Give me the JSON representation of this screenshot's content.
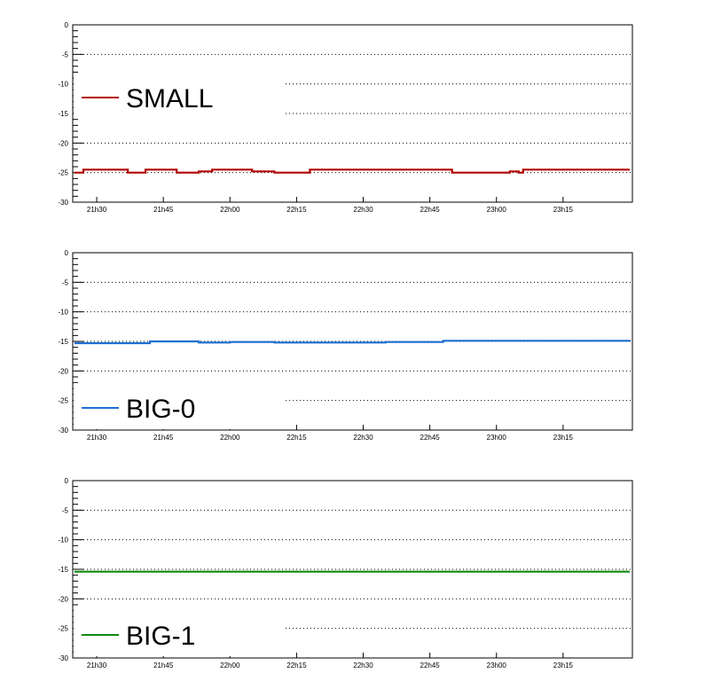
{
  "chart_data": [
    {
      "type": "line",
      "title": "",
      "xlabel": "",
      "ylabel": "",
      "ylim": [
        -30,
        0
      ],
      "yticks": [
        0,
        -5,
        -10,
        -15,
        -20,
        -25,
        -30
      ],
      "xlim": [
        "21:25",
        "23:30"
      ],
      "xticks": [
        "21h30",
        "21h45",
        "22h00",
        "22h15",
        "22h30",
        "22h45",
        "23h00",
        "23h15"
      ],
      "grid": "horizontal dotted",
      "legend_position": "center-left",
      "series": [
        {
          "name": "SMALL",
          "color": "#b20000",
          "x": [
            "21:25",
            "21:27",
            "21:35",
            "21:37",
            "21:39",
            "21:41",
            "21:43",
            "21:48",
            "21:51",
            "21:53",
            "21:56",
            "21:57",
            "22:05",
            "22:10",
            "22:14",
            "22:16",
            "22:18",
            "22:20",
            "22:40",
            "22:45",
            "22:50",
            "22:55",
            "23:00",
            "23:03",
            "23:05",
            "23:06",
            "23:10",
            "23:20",
            "23:30"
          ],
          "values": [
            -25.0,
            -24.5,
            -24.5,
            -25.0,
            -25.0,
            -24.5,
            -24.5,
            -25.0,
            -25.0,
            -24.8,
            -24.5,
            -24.5,
            -24.8,
            -25.0,
            -25.0,
            -25.0,
            -24.5,
            -24.5,
            -24.5,
            -24.5,
            -25.0,
            -25.0,
            -25.0,
            -24.8,
            -25.0,
            -24.5,
            -24.5,
            -24.5,
            -24.5
          ]
        },
        {
          "name": "BIG-0",
          "color": "#1f6fd0",
          "x": [
            "21:25",
            "21:40",
            "21:42",
            "21:50",
            "21:53",
            "22:00",
            "22:05",
            "22:10",
            "22:14",
            "22:20",
            "22:30",
            "22:35",
            "22:45",
            "22:48",
            "23:00",
            "23:10",
            "23:20",
            "23:30"
          ],
          "values": [
            -15.3,
            -15.3,
            -15.0,
            -15.0,
            -15.2,
            -15.1,
            -15.1,
            -15.2,
            -15.2,
            -15.2,
            -15.2,
            -15.1,
            -15.1,
            -14.9,
            -14.9,
            -14.9,
            -14.9,
            -15.0
          ]
        },
        {
          "name": "BIG-1",
          "color": "#118811",
          "x": [
            "21:25",
            "23:30"
          ],
          "values": [
            -15.4,
            -15.4
          ]
        }
      ]
    }
  ]
}
